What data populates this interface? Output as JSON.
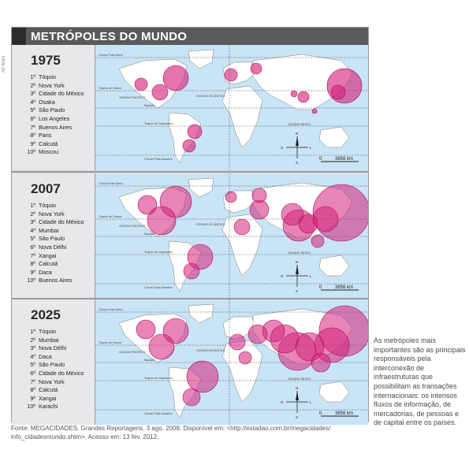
{
  "side_label": "Alf Mais",
  "title": "METRÓPOLES DO MUNDO",
  "panels": [
    {
      "year": "1975",
      "cities": [
        {
          "rank": "1º",
          "name": "Tóquio"
        },
        {
          "rank": "2º",
          "name": "Nova York"
        },
        {
          "rank": "3º",
          "name": "Cidade do México"
        },
        {
          "rank": "4º",
          "name": "Osaka"
        },
        {
          "rank": "5º",
          "name": "São Paulo"
        },
        {
          "rank": "6º",
          "name": "Los Angeles"
        },
        {
          "rank": "7º",
          "name": "Buenos Aires"
        },
        {
          "rank": "8º",
          "name": "Paris"
        },
        {
          "rank": "9º",
          "name": "Calcutá"
        },
        {
          "rank": "10º",
          "name": "Moscou"
        }
      ]
    },
    {
      "year": "2007",
      "cities": [
        {
          "rank": "1º",
          "name": "Tóquio"
        },
        {
          "rank": "2º",
          "name": "Nova York"
        },
        {
          "rank": "3º",
          "name": "Cidade do México"
        },
        {
          "rank": "4º",
          "name": "Mumbai"
        },
        {
          "rank": "5º",
          "name": "São Paulo"
        },
        {
          "rank": "6º",
          "name": "Nova Délhi"
        },
        {
          "rank": "7º",
          "name": "Xangai"
        },
        {
          "rank": "8º",
          "name": "Calcutá"
        },
        {
          "rank": "9º",
          "name": "Daca"
        },
        {
          "rank": "10º",
          "name": "Buenos Aires"
        }
      ]
    },
    {
      "year": "2025",
      "cities": [
        {
          "rank": "1º",
          "name": "Tóquio"
        },
        {
          "rank": "2º",
          "name": "Mumbai"
        },
        {
          "rank": "3º",
          "name": "Nova Délhi"
        },
        {
          "rank": "4º",
          "name": "Daca"
        },
        {
          "rank": "5º",
          "name": "São Paulo"
        },
        {
          "rank": "6º",
          "name": "Cidade do México"
        },
        {
          "rank": "7º",
          "name": "Nova York"
        },
        {
          "rank": "8º",
          "name": "Calcutá"
        },
        {
          "rank": "9º",
          "name": "Xangai"
        },
        {
          "rank": "10º",
          "name": "Karachi"
        }
      ]
    }
  ],
  "map_labels": {
    "circulo_polar_artico": "Círculo Polar Ártico",
    "tropico_cancer": "Trópico de Câncer",
    "equador": "Equador",
    "tropico_capricornio": "Trópico de Capricórnio",
    "circulo_polar_antartico": "Círculo Polar Antártico",
    "oceano_pacifico": "OCEANO PACÍFICO",
    "oceano_atlantico": "OCEANO ATLÂNTICO",
    "oceano_indico": "OCEANO ÍNDICO",
    "meridiano": "Meridiano de Greenwich"
  },
  "compass": {
    "n": "N",
    "s": "S",
    "l": "L",
    "o": "O"
  },
  "scale": {
    "zero": "0",
    "value": "3856 km"
  },
  "caption": "As metrópoles mais importantes são as principais responsáveis pela interconexão de infraestruturas que possibilitam as transações internacionais: os intensos fluxos de informação, de mercadorias, de pessoas e de capital entre os países.",
  "source_line1": "Fonte: MEGACIDADES. Grandes Reportagens. 3 ago. 2008. Disponível em: <http://estadao.com.br/megacidades/",
  "source_line2": "info_cidadesmundo.shtm>. Acesso em: 13 fev. 2012.",
  "colors": {
    "ocean": "#c9e4f5",
    "land": "#ffffff",
    "circle_fill": "#d4207a",
    "title_bar": "#5a5a5c"
  }
}
